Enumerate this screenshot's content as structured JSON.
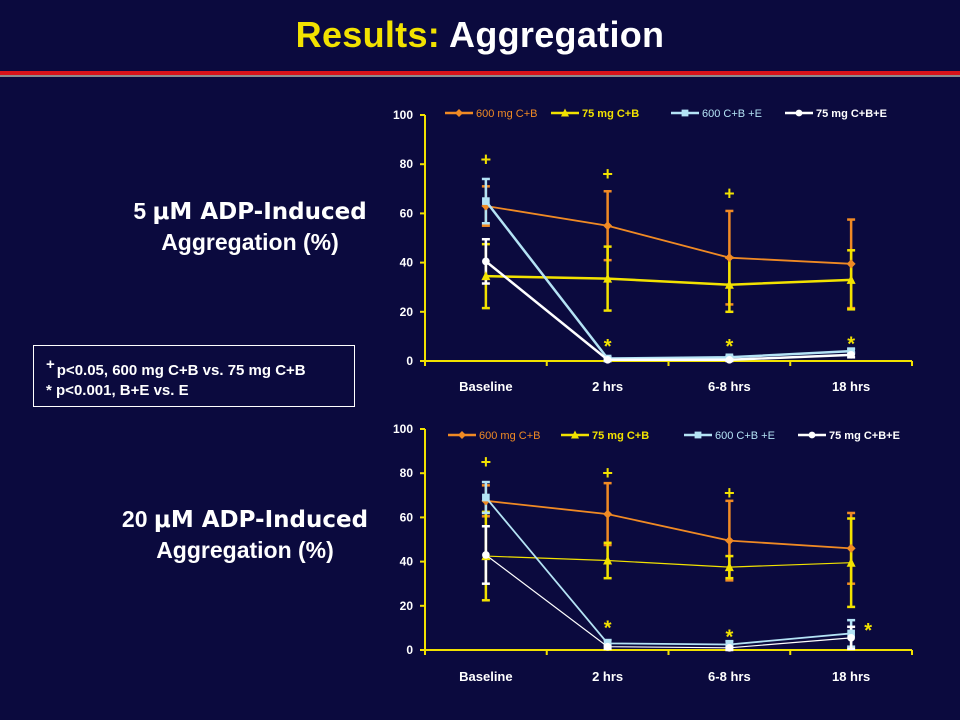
{
  "slide": {
    "title_part1": "Results: ",
    "title_part2": "Aggregation",
    "notes": {
      "line1_symbol": "+",
      "line1_text": "p<0.05, 600 mg C+B vs. 75 mg C+B",
      "line2_symbol": "*",
      "line2_text": "p<0.001, B+E vs. E"
    }
  },
  "colors": {
    "background": "#0b0a3e",
    "title_yellow": "#f2e200",
    "series_600_cb": "#f08a24",
    "series_75_cb": "#f2e200",
    "series_600_cbe": "#b4e3f5",
    "series_75_cbe": "#ffffff",
    "rule_red": "#d8141a"
  },
  "chart_data": [
    {
      "type": "line",
      "title_prefix": "5 ",
      "title_unit": "μM ADP-Induced",
      "title_line2": "Aggregation (%)",
      "categories": [
        "Baseline",
        "2 hrs",
        "6-8 hrs",
        "18 hrs"
      ],
      "ylim": [
        0,
        100
      ],
      "yticks": [
        "0",
        "20",
        "40",
        "60",
        "80",
        "100"
      ],
      "legend_position": "top",
      "series": [
        {
          "name": "600 mg C+B",
          "color": "#f08a24",
          "marker": "diamond",
          "values": [
            63,
            55,
            42,
            39.5
          ],
          "err": [
            8,
            14,
            19,
            18
          ]
        },
        {
          "name": "75 mg C+B",
          "color": "#f2e200",
          "marker": "triangle",
          "values": [
            34.5,
            33.5,
            31,
            33
          ],
          "err": [
            13,
            13,
            11,
            12
          ]
        },
        {
          "name": "600 C+B +E",
          "color": "#b4e3f5",
          "marker": "square",
          "values": [
            65,
            1,
            1.5,
            4
          ],
          "err": [
            9,
            0.5,
            0.5,
            1
          ]
        },
        {
          "name": "75 mg C+B+E",
          "color": "#ffffff",
          "marker": "circle",
          "values": [
            40.5,
            0.5,
            0.5,
            2.5
          ],
          "err": [
            9,
            0.5,
            0.5,
            1
          ]
        }
      ],
      "annotations": [
        {
          "text": "+",
          "category": 0,
          "y": 82,
          "color": "#f2e200"
        },
        {
          "text": "+",
          "category": 1,
          "y": 76,
          "color": "#f2e200"
        },
        {
          "text": "+",
          "category": 2,
          "y": 68,
          "color": "#f2e200"
        },
        {
          "text": "*",
          "category": 1,
          "y": 7,
          "color": "#f2e200"
        },
        {
          "text": "*",
          "category": 2,
          "y": 7,
          "color": "#f2e200"
        },
        {
          "text": "*",
          "category": 3,
          "y": 8,
          "color": "#f2e200"
        }
      ]
    },
    {
      "type": "line",
      "title_prefix": "20 ",
      "title_unit": "μM ADP-Induced",
      "title_line2": "Aggregation (%)",
      "categories": [
        "Baseline",
        "2 hrs",
        "6-8 hrs",
        "18 hrs"
      ],
      "ylim": [
        0,
        100
      ],
      "yticks": [
        "0",
        "20",
        "40",
        "60",
        "80",
        "100"
      ],
      "legend_position": "top",
      "series": [
        {
          "name": "600 mg C+B",
          "color": "#f08a24",
          "marker": "diamond",
          "values": [
            67.5,
            61.5,
            49.5,
            46
          ],
          "err": [
            7,
            14,
            18,
            16
          ]
        },
        {
          "name": "75 mg C+B",
          "color": "#f2e200",
          "marker": "triangle",
          "values": [
            42.5,
            40.5,
            37.5,
            39.5
          ],
          "err": [
            20,
            8,
            5,
            20
          ]
        },
        {
          "name": "600 C+B +E",
          "color": "#b4e3f5",
          "marker": "square",
          "values": [
            69,
            3,
            2.5,
            7.5
          ],
          "err": [
            7,
            1.5,
            1.5,
            6
          ]
        },
        {
          "name": "75 mg C+B+E",
          "color": "#ffffff",
          "marker": "circle",
          "values": [
            43,
            1.5,
            1,
            5.5
          ],
          "err": [
            13,
            1,
            1,
            5
          ]
        }
      ],
      "annotations": [
        {
          "text": "+",
          "category": 0,
          "y": 85,
          "color": "#f2e200"
        },
        {
          "text": "+",
          "category": 1,
          "y": 80,
          "color": "#f2e200"
        },
        {
          "text": "+",
          "category": 2,
          "y": 71,
          "color": "#f2e200"
        },
        {
          "text": "*",
          "category": 1,
          "y": 11,
          "color": "#f2e200"
        },
        {
          "text": "*",
          "category": 2,
          "y": 7,
          "color": "#f2e200"
        },
        {
          "text": "*",
          "category": 3,
          "y": 10,
          "color": "#f2e200",
          "offset": 1
        }
      ]
    }
  ]
}
